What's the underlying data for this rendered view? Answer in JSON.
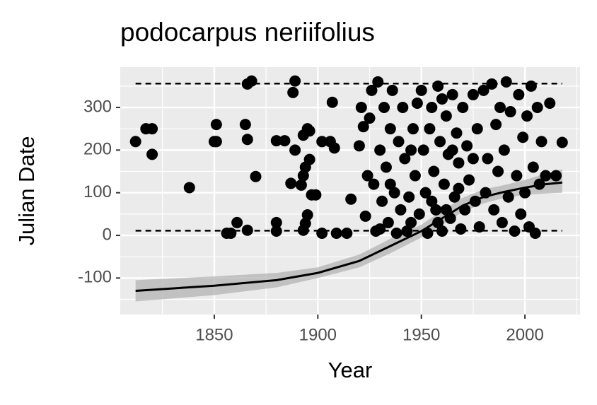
{
  "chart_data": {
    "type": "scatter",
    "title": "podocarpus neriifolius",
    "x_label": "Year",
    "y_label": "Julian Date",
    "xlim": [
      1804.6,
      2026.6
    ],
    "ylim": [
      -185.6,
      394.5
    ],
    "xticks": [
      1850,
      1900,
      1950,
      2000
    ],
    "yticks": [
      -100,
      0,
      100,
      200,
      300
    ],
    "xminor": [
      1825,
      1875,
      1925,
      1975,
      2025
    ],
    "yminor": [
      -150,
      -50,
      50,
      150,
      250,
      350
    ],
    "grid": true,
    "color": "#000000",
    "x": [
      1812,
      1817,
      1820,
      1820,
      1838,
      1850,
      1851,
      1851,
      1856,
      1858,
      1861,
      1865,
      1866,
      1866,
      1866,
      1868,
      1870,
      1880,
      1880,
      1880,
      1884,
      1888,
      1889,
      1889,
      1887,
      1892,
      1893,
      1893,
      1894,
      1895,
      1896,
      1896,
      1897,
      1895,
      1894,
      1893,
      1899,
      1902,
      1902,
      1906,
      1907,
      1908,
      1909,
      1914,
      1916,
      1920,
      1921,
      1922,
      1923,
      1924,
      1925,
      1926,
      1927,
      1928,
      1929,
      1930,
      1931,
      1932,
      1933,
      1934,
      1935,
      1936,
      1937,
      1938,
      1939,
      1940,
      1941,
      1942,
      1943,
      1944,
      1945,
      1946,
      1947,
      1948,
      1949,
      1950,
      1951,
      1952,
      1953,
      1954,
      1955,
      1956,
      1957,
      1958,
      1959,
      1960,
      1961,
      1962,
      1963,
      1964,
      1965,
      1966,
      1967,
      1968,
      1969,
      1970,
      1971,
      1972,
      1973,
      1975,
      1976,
      1977,
      1978,
      1980,
      1981,
      1982,
      1984,
      1985,
      1986,
      1987,
      1988,
      1989,
      1990,
      1991,
      1992,
      1993,
      1995,
      1996,
      1997,
      1998,
      1999,
      2000,
      2001,
      2002,
      2003,
      2004,
      2005,
      2006,
      2007,
      2008,
      2010,
      2012,
      2015,
      2018,
      1930,
      1935,
      1945,
      1955,
      1960,
      1965,
      1975,
      1958,
      1962,
      1968
    ],
    "values": [
      220,
      250,
      250,
      190,
      112,
      220,
      260,
      220,
      5,
      5,
      30,
      260,
      225,
      12,
      355,
      362,
      138,
      222,
      30,
      10,
      222,
      335,
      200,
      362,
      122,
      118,
      140,
      235,
      160,
      250,
      245,
      178,
      95,
      48,
      28,
      12,
      95,
      220,
      5,
      220,
      312,
      205,
      5,
      5,
      85,
      210,
      300,
      255,
      45,
      140,
      275,
      340,
      120,
      10,
      360,
      200,
      80,
      300,
      160,
      30,
      250,
      340,
      100,
      5,
      220,
      60,
      300,
      180,
      10,
      90,
      30,
      250,
      140,
      310,
      50,
      340,
      200,
      100,
      5,
      250,
      300,
      150,
      60,
      350,
      220,
      10,
      120,
      280,
      190,
      40,
      330,
      90,
      240,
      170,
      15,
      300,
      60,
      210,
      130,
      330,
      80,
      250,
      20,
      340,
      100,
      180,
      355,
      60,
      260,
      150,
      300,
      30,
      200,
      360,
      90,
      290,
      10,
      140,
      330,
      50,
      230,
      100,
      280,
      20,
      350,
      160,
      5,
      300,
      120,
      220,
      140,
      310,
      140,
      218,
      15,
      120,
      200,
      80,
      320,
      200,
      180,
      30,
      60,
      110
    ],
    "fit": {
      "x": [
        1812,
        1850,
        1880,
        1900,
        1920,
        1935,
        1950,
        1960,
        1970,
        1980,
        1990,
        2000,
        2010,
        2018
      ],
      "values": [
        -130,
        -118,
        -105,
        -88,
        -60,
        -25,
        10,
        40,
        70,
        90,
        102,
        112,
        120,
        124
      ],
      "lower": [
        -155,
        -140,
        -122,
        -100,
        -75,
        -42,
        -5,
        25,
        55,
        75,
        88,
        95,
        98,
        100
      ],
      "upper": [
        -105,
        -96,
        -88,
        -75,
        -45,
        -8,
        25,
        58,
        88,
        108,
        118,
        130,
        145,
        155
      ],
      "color": "#000000",
      "band_color": "#b3b3b3"
    },
    "bounds": [
      {
        "x": [
          1812,
          2018
        ],
        "values": [
          356,
          356
        ]
      },
      {
        "x": [
          1812,
          2018
        ],
        "values": [
          11,
          11
        ]
      }
    ],
    "bound_style": "dashed"
  }
}
